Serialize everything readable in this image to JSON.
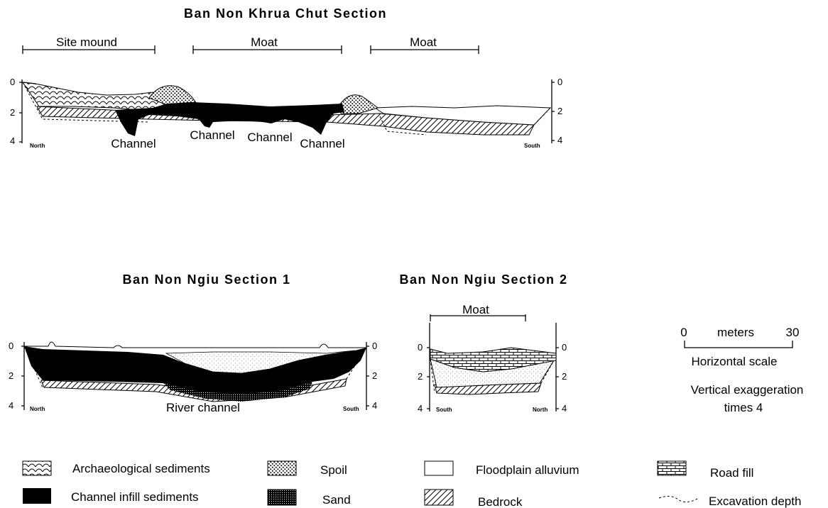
{
  "titles": {
    "khrua": "Ban  Non  Khrua  Chut  Section",
    "ngiu1": "Ban  Non  Ngiu  Section  1",
    "ngiu2": "Ban  Non  Ngiu  Section  2"
  },
  "khrua": {
    "spans": [
      "Site mound",
      "Moat",
      "Moat"
    ],
    "labels": [
      "Channel",
      "Channel",
      "Channel",
      "Channel"
    ],
    "left_ticks": [
      "0",
      "2",
      "4"
    ],
    "right_ticks": [
      "0",
      "2",
      "4"
    ],
    "north": "North",
    "south": "South"
  },
  "ngiu1": {
    "label": "River channel",
    "left_ticks": [
      "0",
      "2",
      "4"
    ],
    "right_ticks": [
      "0",
      "2",
      "4"
    ],
    "north": "North",
    "south": "South"
  },
  "ngiu2": {
    "span": "Moat",
    "left_ticks": [
      "0",
      "2",
      "4"
    ],
    "right_ticks": [
      "0",
      "2",
      "4"
    ],
    "south": "South",
    "north": "North"
  },
  "scale": {
    "zero": "0",
    "unit": "meters",
    "max": "30",
    "caption": "Horizontal   scale",
    "exag1": "Vertical   exaggeration",
    "exag2": "times  4"
  },
  "legend": [
    {
      "key": "archaeological",
      "label": "Archaeological   sediments"
    },
    {
      "key": "spoil",
      "label": "Spoil"
    },
    {
      "key": "floodplain",
      "label": "Floodplain   alluvium"
    },
    {
      "key": "roadfill",
      "label": "Road  fill"
    },
    {
      "key": "channel",
      "label": "Channel   infill   sediments"
    },
    {
      "key": "sand",
      "label": "Sand"
    },
    {
      "key": "bedrock",
      "label": "Bedrock"
    },
    {
      "key": "excavation",
      "label": "Excavation  depth"
    }
  ]
}
